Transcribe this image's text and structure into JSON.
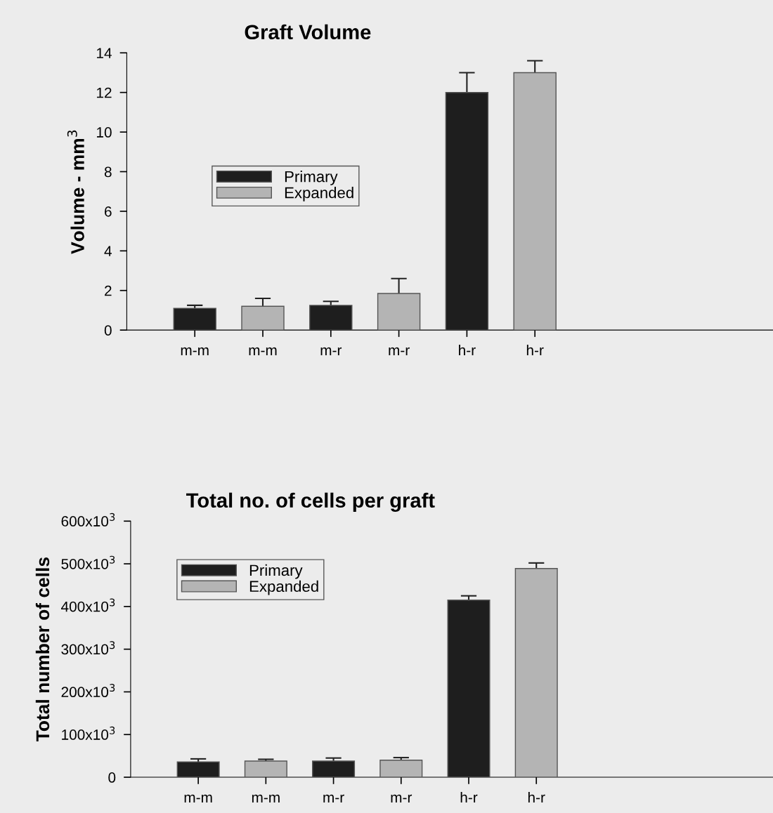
{
  "chart_data": [
    {
      "type": "bar",
      "title": "Graft Volume",
      "ylabel": "Volume - mm$^{3}$",
      "categories": [
        "m-m",
        "m-m",
        "m-r",
        "m-r",
        "h-r",
        "h-r"
      ],
      "series": [
        {
          "name": "Primary",
          "color": "#1e1e1e",
          "values": [
            1.1,
            null,
            1.25,
            null,
            12,
            null
          ],
          "errors": [
            0.15,
            null,
            0.2,
            null,
            1,
            null
          ]
        },
        {
          "name": "Expanded",
          "color": "#b4b4b4",
          "values": [
            null,
            1.2,
            null,
            1.85,
            null,
            13
          ],
          "errors": [
            null,
            0.4,
            null,
            0.75,
            null,
            0.6
          ]
        }
      ],
      "ylim": [
        0,
        14
      ],
      "yticks": [
        0,
        2,
        4,
        6,
        8,
        10,
        12,
        14
      ],
      "grid": false,
      "legend": "center left"
    },
    {
      "type": "bar",
      "title": "Total no. of cells per graft",
      "ylabel": "Total number of cells",
      "categories": [
        "m-m",
        "m-m",
        "m-r",
        "m-r",
        "h-r",
        "h-r"
      ],
      "series": [
        {
          "name": "Primary",
          "color": "#1e1e1e",
          "values": [
            36000,
            null,
            38000,
            null,
            415000,
            null
          ],
          "errors": [
            7000,
            null,
            7000,
            null,
            10000,
            null
          ]
        },
        {
          "name": "Expanded",
          "color": "#b4b4b4",
          "values": [
            null,
            38000,
            null,
            40000,
            null,
            489000
          ],
          "errors": [
            null,
            4000,
            null,
            6000,
            null,
            13000
          ]
        }
      ],
      "ylim": [
        0,
        600000
      ],
      "yticks": [
        0,
        {
          "value": 100000,
          "label": "100x10$^{3}$"
        },
        {
          "value": 200000,
          "label": "200x10$^{3}$"
        },
        {
          "value": 300000,
          "label": "300x10$^{3}$"
        },
        {
          "value": 400000,
          "label": "400x10$^{3}$"
        },
        {
          "value": 500000,
          "label": "500x10$^{3}$"
        },
        {
          "value": 600000,
          "label": "600x10$^{3}$"
        }
      ],
      "grid": false,
      "legend": "top left"
    }
  ]
}
